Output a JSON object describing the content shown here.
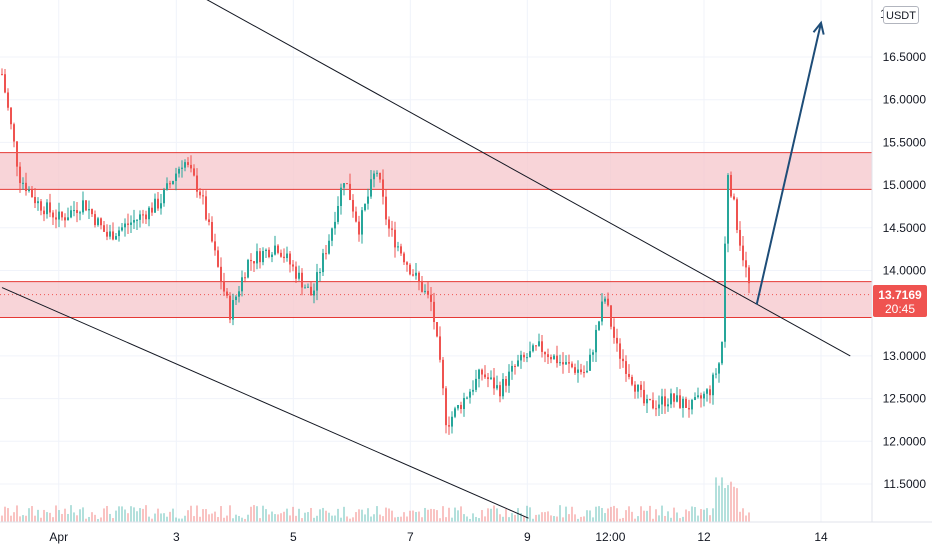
{
  "currency": "USDT",
  "last_price": "13.7169",
  "countdown": "20:45",
  "colors": {
    "up": "#26a69a",
    "down": "#ef5350",
    "zone_fill": "#f5c6cb",
    "zone_line": "#e53935",
    "channel": "#131722",
    "arrow": "#1e4d78",
    "grid": "#f0f3fa"
  },
  "chart_data": {
    "type": "candlestick",
    "y_axis": {
      "ticks": [
        "11.5000",
        "12.0000",
        "12.5000",
        "13.0000",
        "13.5000",
        "14.0000",
        "14.5000",
        "15.0000",
        "15.5000",
        "16.0000",
        "16.5000"
      ],
      "top_partial_label": "1",
      "range": [
        11.0,
        17.0
      ]
    },
    "x_axis": {
      "ticks": [
        "Apr",
        "3",
        "5",
        "7",
        "9",
        "12:00",
        "12",
        "14"
      ]
    },
    "series": [
      {
        "name": "",
        "kind": "ohlc",
        "waypoints": [
          {
            "t": 0.0,
            "p": 16.3
          },
          {
            "t": 0.1,
            "p": 15.9
          },
          {
            "t": 0.3,
            "p": 15.1
          },
          {
            "t": 0.6,
            "p": 14.8
          },
          {
            "t": 1.0,
            "p": 14.6
          },
          {
            "t": 1.4,
            "p": 14.8
          },
          {
            "t": 1.8,
            "p": 14.4
          },
          {
            "t": 2.3,
            "p": 14.6
          },
          {
            "t": 2.7,
            "p": 14.8
          },
          {
            "t": 3.1,
            "p": 15.3
          },
          {
            "t": 3.4,
            "p": 14.9
          },
          {
            "t": 3.7,
            "p": 14.0
          },
          {
            "t": 3.9,
            "p": 13.5
          },
          {
            "t": 4.2,
            "p": 14.1
          },
          {
            "t": 4.7,
            "p": 14.3
          },
          {
            "t": 5.0,
            "p": 14.0
          },
          {
            "t": 5.3,
            "p": 13.7
          },
          {
            "t": 5.6,
            "p": 14.4
          },
          {
            "t": 5.85,
            "p": 15.1
          },
          {
            "t": 6.1,
            "p": 14.5
          },
          {
            "t": 6.4,
            "p": 15.2
          },
          {
            "t": 6.6,
            "p": 14.5
          },
          {
            "t": 7.0,
            "p": 14.0
          },
          {
            "t": 7.35,
            "p": 13.6
          },
          {
            "t": 7.5,
            "p": 12.8
          },
          {
            "t": 7.6,
            "p": 12.2
          },
          {
            "t": 7.9,
            "p": 12.5
          },
          {
            "t": 8.2,
            "p": 12.8
          },
          {
            "t": 8.5,
            "p": 12.6
          },
          {
            "t": 8.8,
            "p": 12.9
          },
          {
            "t": 9.2,
            "p": 13.1
          },
          {
            "t": 9.6,
            "p": 12.9
          },
          {
            "t": 10.0,
            "p": 12.8
          },
          {
            "t": 10.3,
            "p": 13.7
          },
          {
            "t": 10.5,
            "p": 13.1
          },
          {
            "t": 10.8,
            "p": 12.7
          },
          {
            "t": 11.0,
            "p": 12.4
          },
          {
            "t": 11.4,
            "p": 12.5
          },
          {
            "t": 11.8,
            "p": 12.4
          },
          {
            "t": 12.1,
            "p": 12.6
          },
          {
            "t": 12.3,
            "p": 13.0
          },
          {
            "t": 12.4,
            "p": 15.2
          },
          {
            "t": 12.6,
            "p": 14.4
          },
          {
            "t": 12.8,
            "p": 13.72
          }
        ]
      }
    ],
    "annotations": {
      "resistance_zone": [
        14.95,
        15.38
      ],
      "support_zone": [
        13.45,
        13.87
      ],
      "channel_upper": [
        [
          0.0,
          18.5
        ],
        [
          14.5,
          13.0
        ]
      ],
      "channel_lower": [
        [
          0.0,
          13.8
        ],
        [
          9.0,
          11.1
        ]
      ],
      "projection_arrow": [
        [
          12.9,
          13.6
        ],
        [
          14.0,
          16.9
        ]
      ]
    }
  }
}
